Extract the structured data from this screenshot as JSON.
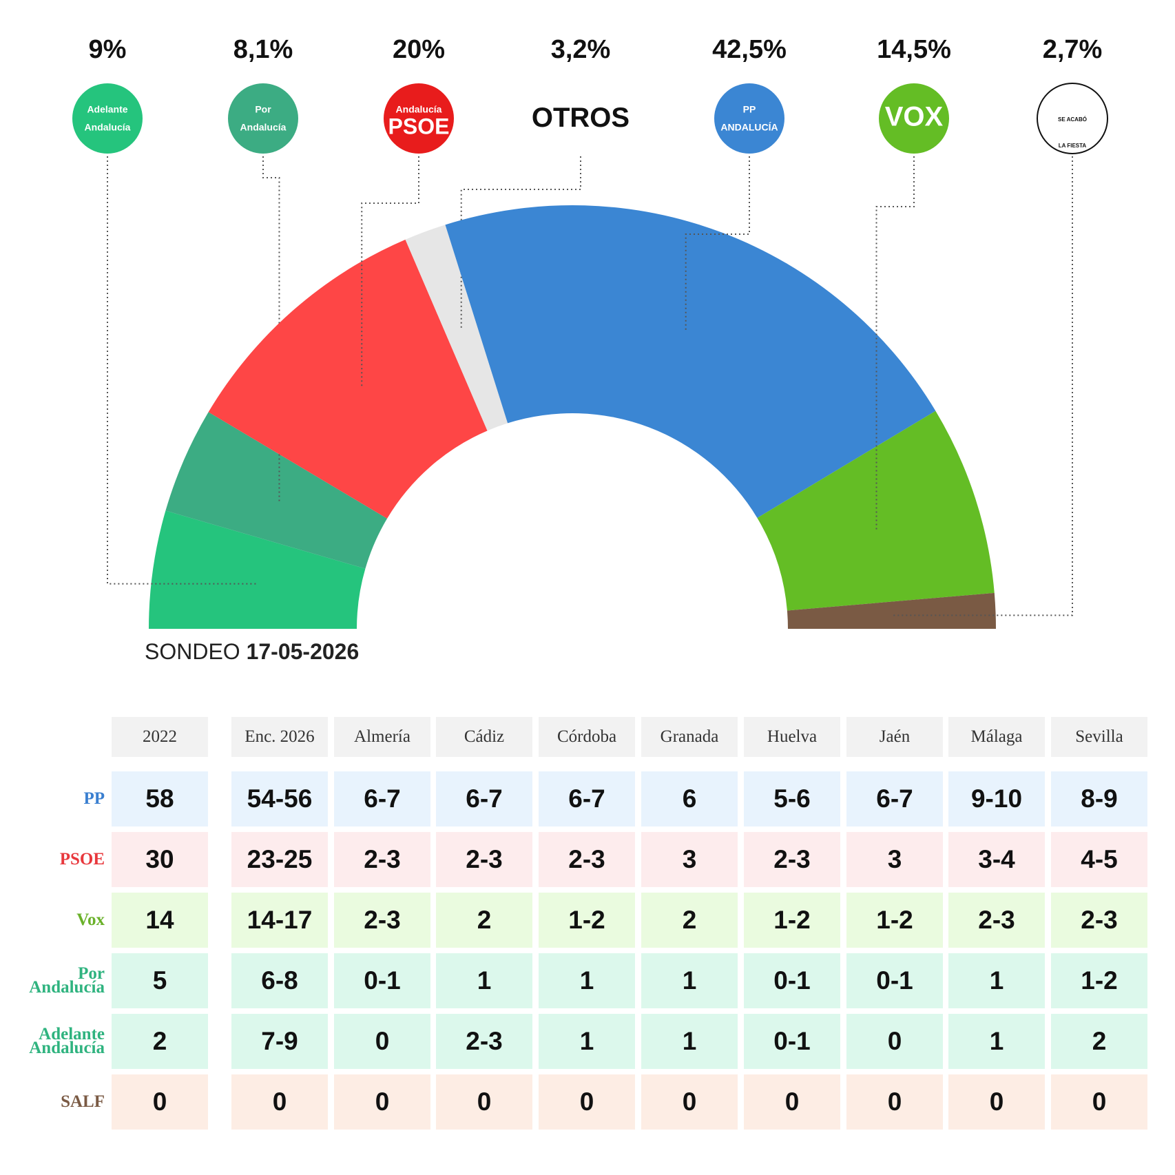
{
  "chart_data": {
    "type": "semidonut",
    "logo_text": [
      [
        "Adelante",
        "Andalucía"
      ],
      [
        "Por",
        "Andalucía"
      ],
      [
        "Andalucía",
        "PSOE"
      ],
      [
        "OTROS"
      ],
      [
        "PP",
        "ANDALUCÍA"
      ],
      [
        "VOX"
      ],
      [
        "SE ACABÓ",
        "LA FIESTA"
      ]
    ],
    "values": [
      9,
      8.1,
      20,
      3.2,
      42.5,
      14.5,
      2.7
    ],
    "value_labels": [
      "9%",
      "8,1%",
      "20%",
      "3,2%",
      "42,5%",
      "14,5%",
      "2,7%"
    ],
    "colors": [
      "#25c47d",
      "#3cac83",
      "#fe4646",
      "#e6e6e6",
      "#3b86d3",
      "#64bd25",
      "#7a5a44"
    ],
    "logo_colors": [
      "#25c47d",
      "#3cac83",
      "#e81c1c",
      null,
      "#3b86d3",
      "#64bd25",
      "#ffffff"
    ],
    "note_label": "SONDEO",
    "note_date": "17-05-2026"
  },
  "table": {
    "columns": [
      "2022",
      "Enc. 2026",
      "Almería",
      "Cádiz",
      "Córdoba",
      "Granada",
      "Huelva",
      "Jaén",
      "Málaga",
      "Sevilla"
    ],
    "rows": [
      {
        "party": "PP",
        "color": "#3a7fd0",
        "background": "#e8f3fd",
        "cells": [
          "58",
          "54-56",
          "6-7",
          "6-7",
          "6-7",
          "6",
          "5-6",
          "6-7",
          "9-10",
          "8-9"
        ]
      },
      {
        "party": "PSOE",
        "color": "#e8383d",
        "background": "#fdeced",
        "cells": [
          "30",
          "23-25",
          "2-3",
          "2-3",
          "2-3",
          "3",
          "2-3",
          "3",
          "3-4",
          "4-5"
        ]
      },
      {
        "party": "Vox",
        "color": "#6ab12a",
        "background": "#eafbdf",
        "cells": [
          "14",
          "14-17",
          "2-3",
          "2",
          "1-2",
          "2",
          "1-2",
          "1-2",
          "2-3",
          "2-3"
        ]
      },
      {
        "party": "Por Andalucía",
        "color": "#2fb37f",
        "background": "#dcf8ec",
        "cells": [
          "5",
          "6-8",
          "0-1",
          "1",
          "1",
          "1",
          "0-1",
          "0-1",
          "1",
          "1-2"
        ]
      },
      {
        "party": "Adelante Andalucía",
        "color": "#2fb37f",
        "background": "#dcf8ec",
        "cells": [
          "2",
          "7-9",
          "0",
          "2-3",
          "1",
          "1",
          "0-1",
          "0",
          "1",
          "2"
        ]
      },
      {
        "party": "SALF",
        "color": "#7a5a44",
        "background": "#fdede4",
        "cells": [
          "0",
          "0",
          "0",
          "0",
          "0",
          "0",
          "0",
          "0",
          "0",
          "0"
        ]
      }
    ]
  }
}
